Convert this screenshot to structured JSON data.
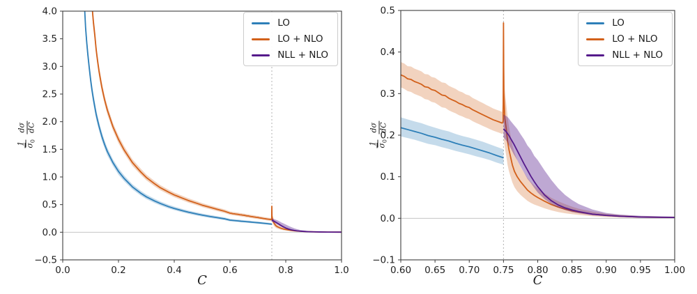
{
  "figure": {
    "background": "#ffffff"
  },
  "ylabel": {
    "frac1_num": "1",
    "frac1_den_sym": "σ",
    "frac1_den_sub": "0",
    "frac2_num": "dσ",
    "frac2_den": "dC"
  },
  "style": {
    "spine_color": "#3c3c3c",
    "tick_color": "#3c3c3c",
    "tick_label_color": "#1f1f1f",
    "zero_line_color": "#c4c4c4",
    "ref_line_color": "#b0b0b0",
    "legend_border": "#cccccc"
  },
  "chart_data": {
    "type": "line",
    "title": "",
    "legend_position": "upper right",
    "grid": false,
    "series": [
      {
        "id": "lo",
        "name": "LO",
        "color": "#2d7fb8",
        "band_opacity": 0.28,
        "points": [
          [
            0.078,
            4.1,
            3.94,
            4.26
          ],
          [
            0.082,
            3.7,
            3.56,
            3.84
          ],
          [
            0.086,
            3.44,
            3.31,
            3.57
          ],
          [
            0.09,
            3.22,
            3.1,
            3.34
          ],
          [
            0.095,
            2.98,
            2.86,
            3.1
          ],
          [
            0.1,
            2.76,
            2.65,
            2.87
          ],
          [
            0.105,
            2.57,
            2.47,
            2.67
          ],
          [
            0.11,
            2.41,
            2.31,
            2.51
          ],
          [
            0.12,
            2.13,
            2.04,
            2.22
          ],
          [
            0.13,
            1.92,
            1.84,
            2.0
          ],
          [
            0.14,
            1.74,
            1.66,
            1.82
          ],
          [
            0.15,
            1.59,
            1.52,
            1.66
          ],
          [
            0.16,
            1.46,
            1.39,
            1.53
          ],
          [
            0.18,
            1.26,
            1.2,
            1.32
          ],
          [
            0.2,
            1.1,
            1.04,
            1.16
          ],
          [
            0.22,
            0.975,
            0.925,
            1.03
          ],
          [
            0.25,
            0.82,
            0.775,
            0.868
          ],
          [
            0.28,
            0.705,
            0.663,
            0.75
          ],
          [
            0.3,
            0.64,
            0.6,
            0.683
          ],
          [
            0.33,
            0.565,
            0.528,
            0.605
          ],
          [
            0.35,
            0.52,
            0.485,
            0.558
          ],
          [
            0.38,
            0.462,
            0.43,
            0.497
          ],
          [
            0.4,
            0.43,
            0.399,
            0.464
          ],
          [
            0.43,
            0.388,
            0.358,
            0.42
          ],
          [
            0.45,
            0.363,
            0.334,
            0.394
          ],
          [
            0.48,
            0.33,
            0.302,
            0.36
          ],
          [
            0.5,
            0.31,
            0.283,
            0.339
          ],
          [
            0.53,
            0.283,
            0.257,
            0.311
          ],
          [
            0.55,
            0.267,
            0.242,
            0.294
          ],
          [
            0.58,
            0.243,
            0.219,
            0.269
          ],
          [
            0.6,
            0.218,
            0.197,
            0.243
          ],
          [
            0.61,
            0.2135,
            0.193,
            0.238
          ],
          [
            0.62,
            0.209,
            0.189,
            0.233
          ],
          [
            0.63,
            0.2045,
            0.184,
            0.229
          ],
          [
            0.64,
            0.199,
            0.179,
            0.223
          ],
          [
            0.65,
            0.195,
            0.176,
            0.218
          ],
          [
            0.66,
            0.19,
            0.171,
            0.213
          ],
          [
            0.67,
            0.186,
            0.167,
            0.209
          ],
          [
            0.68,
            0.1805,
            0.162,
            0.203
          ],
          [
            0.69,
            0.176,
            0.158,
            0.198
          ],
          [
            0.7,
            0.172,
            0.154,
            0.194
          ],
          [
            0.71,
            0.167,
            0.149,
            0.189
          ],
          [
            0.72,
            0.162,
            0.145,
            0.184
          ],
          [
            0.73,
            0.157,
            0.14,
            0.178
          ],
          [
            0.74,
            0.151,
            0.134,
            0.172
          ],
          [
            0.75,
            0.1455,
            0.129,
            0.166
          ]
        ]
      },
      {
        "id": "lonlo",
        "name": "LO + NLO",
        "color": "#d2601a",
        "band_opacity": 0.28,
        "points": [
          [
            0.105,
            4.1,
            3.96,
            4.24
          ],
          [
            0.11,
            3.8,
            3.67,
            3.93
          ],
          [
            0.115,
            3.57,
            3.44,
            3.7
          ],
          [
            0.12,
            3.3,
            3.19,
            3.41
          ],
          [
            0.125,
            3.1,
            3.0,
            3.2
          ],
          [
            0.13,
            2.92,
            2.82,
            3.02
          ],
          [
            0.14,
            2.63,
            2.54,
            2.72
          ],
          [
            0.15,
            2.4,
            2.32,
            2.48
          ],
          [
            0.16,
            2.21,
            2.13,
            2.29
          ],
          [
            0.18,
            1.91,
            1.84,
            1.98
          ],
          [
            0.2,
            1.68,
            1.61,
            1.75
          ],
          [
            0.22,
            1.49,
            1.43,
            1.56
          ],
          [
            0.25,
            1.26,
            1.2,
            1.32
          ],
          [
            0.28,
            1.09,
            1.04,
            1.15
          ],
          [
            0.3,
            0.99,
            0.94,
            1.043
          ],
          [
            0.33,
            0.875,
            0.828,
            0.924
          ],
          [
            0.35,
            0.805,
            0.76,
            0.852
          ],
          [
            0.38,
            0.725,
            0.683,
            0.769
          ],
          [
            0.4,
            0.675,
            0.634,
            0.718
          ],
          [
            0.43,
            0.615,
            0.576,
            0.656
          ],
          [
            0.45,
            0.575,
            0.537,
            0.615
          ],
          [
            0.48,
            0.525,
            0.489,
            0.563
          ],
          [
            0.5,
            0.49,
            0.455,
            0.527
          ],
          [
            0.53,
            0.448,
            0.414,
            0.484
          ],
          [
            0.55,
            0.42,
            0.387,
            0.455
          ],
          [
            0.58,
            0.38,
            0.348,
            0.414
          ],
          [
            0.6,
            0.345,
            0.315,
            0.376
          ],
          [
            0.605,
            0.3415,
            0.3115,
            0.3725
          ],
          [
            0.61,
            0.3355,
            0.306,
            0.366
          ],
          [
            0.615,
            0.334,
            0.304,
            0.365
          ],
          [
            0.62,
            0.329,
            0.299,
            0.36
          ],
          [
            0.625,
            0.326,
            0.296,
            0.357
          ],
          [
            0.63,
            0.3225,
            0.2925,
            0.3535
          ],
          [
            0.635,
            0.3165,
            0.287,
            0.347
          ],
          [
            0.64,
            0.315,
            0.285,
            0.346
          ],
          [
            0.645,
            0.3095,
            0.28,
            0.34
          ],
          [
            0.65,
            0.3075,
            0.278,
            0.338
          ],
          [
            0.655,
            0.302,
            0.2725,
            0.3325
          ],
          [
            0.66,
            0.2965,
            0.267,
            0.327
          ],
          [
            0.665,
            0.295,
            0.2655,
            0.3255
          ],
          [
            0.67,
            0.289,
            0.26,
            0.319
          ],
          [
            0.675,
            0.285,
            0.256,
            0.315
          ],
          [
            0.68,
            0.2815,
            0.2525,
            0.3115
          ],
          [
            0.685,
            0.2765,
            0.248,
            0.306
          ],
          [
            0.69,
            0.2735,
            0.245,
            0.303
          ],
          [
            0.695,
            0.269,
            0.241,
            0.298
          ],
          [
            0.7,
            0.2665,
            0.2385,
            0.2955
          ],
          [
            0.705,
            0.261,
            0.2335,
            0.2895
          ],
          [
            0.71,
            0.257,
            0.2295,
            0.2855
          ],
          [
            0.715,
            0.253,
            0.226,
            0.281
          ],
          [
            0.72,
            0.249,
            0.222,
            0.277
          ],
          [
            0.725,
            0.245,
            0.2185,
            0.2725
          ],
          [
            0.73,
            0.241,
            0.2145,
            0.2685
          ],
          [
            0.735,
            0.237,
            0.211,
            0.264
          ],
          [
            0.74,
            0.234,
            0.208,
            0.261
          ],
          [
            0.745,
            0.231,
            0.205,
            0.258
          ],
          [
            0.748,
            0.229,
            0.203,
            0.256
          ],
          [
            0.7495,
            0.233,
            0.206,
            0.3
          ],
          [
            0.75,
            0.47,
            0.25,
            0.485
          ],
          [
            0.7505,
            0.3,
            0.19,
            0.4
          ],
          [
            0.752,
            0.24,
            0.17,
            0.31
          ],
          [
            0.754,
            0.215,
            0.15,
            0.275
          ],
          [
            0.756,
            0.185,
            0.128,
            0.245
          ],
          [
            0.758,
            0.165,
            0.113,
            0.22
          ],
          [
            0.76,
            0.15,
            0.102,
            0.202
          ],
          [
            0.763,
            0.128,
            0.086,
            0.176
          ],
          [
            0.766,
            0.113,
            0.075,
            0.158
          ],
          [
            0.77,
            0.1,
            0.065,
            0.14
          ],
          [
            0.775,
            0.088,
            0.056,
            0.123
          ],
          [
            0.78,
            0.078,
            0.049,
            0.11
          ],
          [
            0.785,
            0.068,
            0.042,
            0.097
          ],
          [
            0.79,
            0.061,
            0.037,
            0.087
          ],
          [
            0.795,
            0.055,
            0.033,
            0.079
          ],
          [
            0.8,
            0.05,
            0.03,
            0.072
          ],
          [
            0.81,
            0.041,
            0.024,
            0.06
          ],
          [
            0.82,
            0.033,
            0.019,
            0.049
          ],
          [
            0.83,
            0.027,
            0.015,
            0.041
          ],
          [
            0.84,
            0.022,
            0.012,
            0.034
          ],
          [
            0.85,
            0.018,
            0.01,
            0.028
          ],
          [
            0.86,
            0.015,
            0.008,
            0.023
          ],
          [
            0.88,
            0.01,
            0.005,
            0.016
          ],
          [
            0.9,
            0.007,
            0.003,
            0.011
          ],
          [
            0.92,
            0.005,
            0.002,
            0.008
          ],
          [
            0.95,
            0.003,
            0.001,
            0.005
          ],
          [
            1.0,
            0.002,
            0.0005,
            0.0035
          ]
        ]
      },
      {
        "id": "nllnlo",
        "name": "NLL + NLO",
        "color": "#551a8b",
        "band_opacity": 0.38,
        "points": [
          [
            0.75,
            0.215,
            0.195,
            0.25
          ],
          [
            0.7525,
            0.211,
            0.19,
            0.247
          ],
          [
            0.755,
            0.206,
            0.185,
            0.245
          ],
          [
            0.758,
            0.199,
            0.176,
            0.24
          ],
          [
            0.76,
            0.193,
            0.17,
            0.235
          ],
          [
            0.765,
            0.179,
            0.154,
            0.225
          ],
          [
            0.77,
            0.163,
            0.14,
            0.215
          ],
          [
            0.775,
            0.147,
            0.124,
            0.202
          ],
          [
            0.78,
            0.131,
            0.11,
            0.19
          ],
          [
            0.785,
            0.116,
            0.095,
            0.175
          ],
          [
            0.79,
            0.101,
            0.085,
            0.165
          ],
          [
            0.795,
            0.088,
            0.073,
            0.15
          ],
          [
            0.8,
            0.076,
            0.062,
            0.14
          ],
          [
            0.81,
            0.056,
            0.046,
            0.115
          ],
          [
            0.82,
            0.042,
            0.034,
            0.092
          ],
          [
            0.83,
            0.032,
            0.026,
            0.072
          ],
          [
            0.84,
            0.025,
            0.02,
            0.056
          ],
          [
            0.85,
            0.02,
            0.015,
            0.044
          ],
          [
            0.86,
            0.016,
            0.012,
            0.034
          ],
          [
            0.88,
            0.01,
            0.007,
            0.021
          ],
          [
            0.9,
            0.007,
            0.005,
            0.013
          ],
          [
            0.92,
            0.005,
            0.003,
            0.009
          ],
          [
            0.95,
            0.003,
            0.002,
            0.006
          ],
          [
            1.0,
            0.002,
            0.001,
            0.004
          ]
        ]
      }
    ],
    "charts": [
      {
        "name": "full-range",
        "xlabel": "C",
        "ylabel": "1/σ0 dσ/dC",
        "xlim": [
          0.0,
          1.0
        ],
        "ylim": [
          -0.5,
          4.0
        ],
        "vline": 0.75,
        "hline": 0.0,
        "xticks": [
          {
            "v": 0.0,
            "l": "0.0"
          },
          {
            "v": 0.2,
            "l": "0.2"
          },
          {
            "v": 0.4,
            "l": "0.4"
          },
          {
            "v": 0.6,
            "l": "0.6"
          },
          {
            "v": 0.8,
            "l": "0.8"
          },
          {
            "v": 1.0,
            "l": "1.0"
          }
        ],
        "yticks": [
          {
            "v": -0.5,
            "l": "−0.5"
          },
          {
            "v": 0.0,
            "l": "0.0"
          },
          {
            "v": 0.5,
            "l": "0.5"
          },
          {
            "v": 1.0,
            "l": "1.0"
          },
          {
            "v": 1.5,
            "l": "1.5"
          },
          {
            "v": 2.0,
            "l": "2.0"
          },
          {
            "v": 2.5,
            "l": "2.5"
          },
          {
            "v": 3.0,
            "l": "3.0"
          },
          {
            "v": 3.5,
            "l": "3.5"
          },
          {
            "v": 4.0,
            "l": "4.0"
          }
        ]
      },
      {
        "name": "zoom-range",
        "xlabel": "C",
        "ylabel": "1/σ0 dσ/dC",
        "xlim": [
          0.6,
          1.0
        ],
        "ylim": [
          -0.1,
          0.5
        ],
        "vline": 0.75,
        "hline": 0.0,
        "xticks": [
          {
            "v": 0.6,
            "l": "0.60"
          },
          {
            "v": 0.65,
            "l": "0.65"
          },
          {
            "v": 0.7,
            "l": "0.70"
          },
          {
            "v": 0.75,
            "l": "0.75"
          },
          {
            "v": 0.8,
            "l": "0.80"
          },
          {
            "v": 0.85,
            "l": "0.85"
          },
          {
            "v": 0.9,
            "l": "0.90"
          },
          {
            "v": 0.95,
            "l": "0.95"
          },
          {
            "v": 1.0,
            "l": "1.00"
          }
        ],
        "yticks": [
          {
            "v": -0.1,
            "l": "−0.1"
          },
          {
            "v": 0.0,
            "l": "0.0"
          },
          {
            "v": 0.1,
            "l": "0.1"
          },
          {
            "v": 0.2,
            "l": "0.2"
          },
          {
            "v": 0.3,
            "l": "0.3"
          },
          {
            "v": 0.4,
            "l": "0.4"
          },
          {
            "v": 0.5,
            "l": "0.5"
          }
        ]
      }
    ]
  }
}
